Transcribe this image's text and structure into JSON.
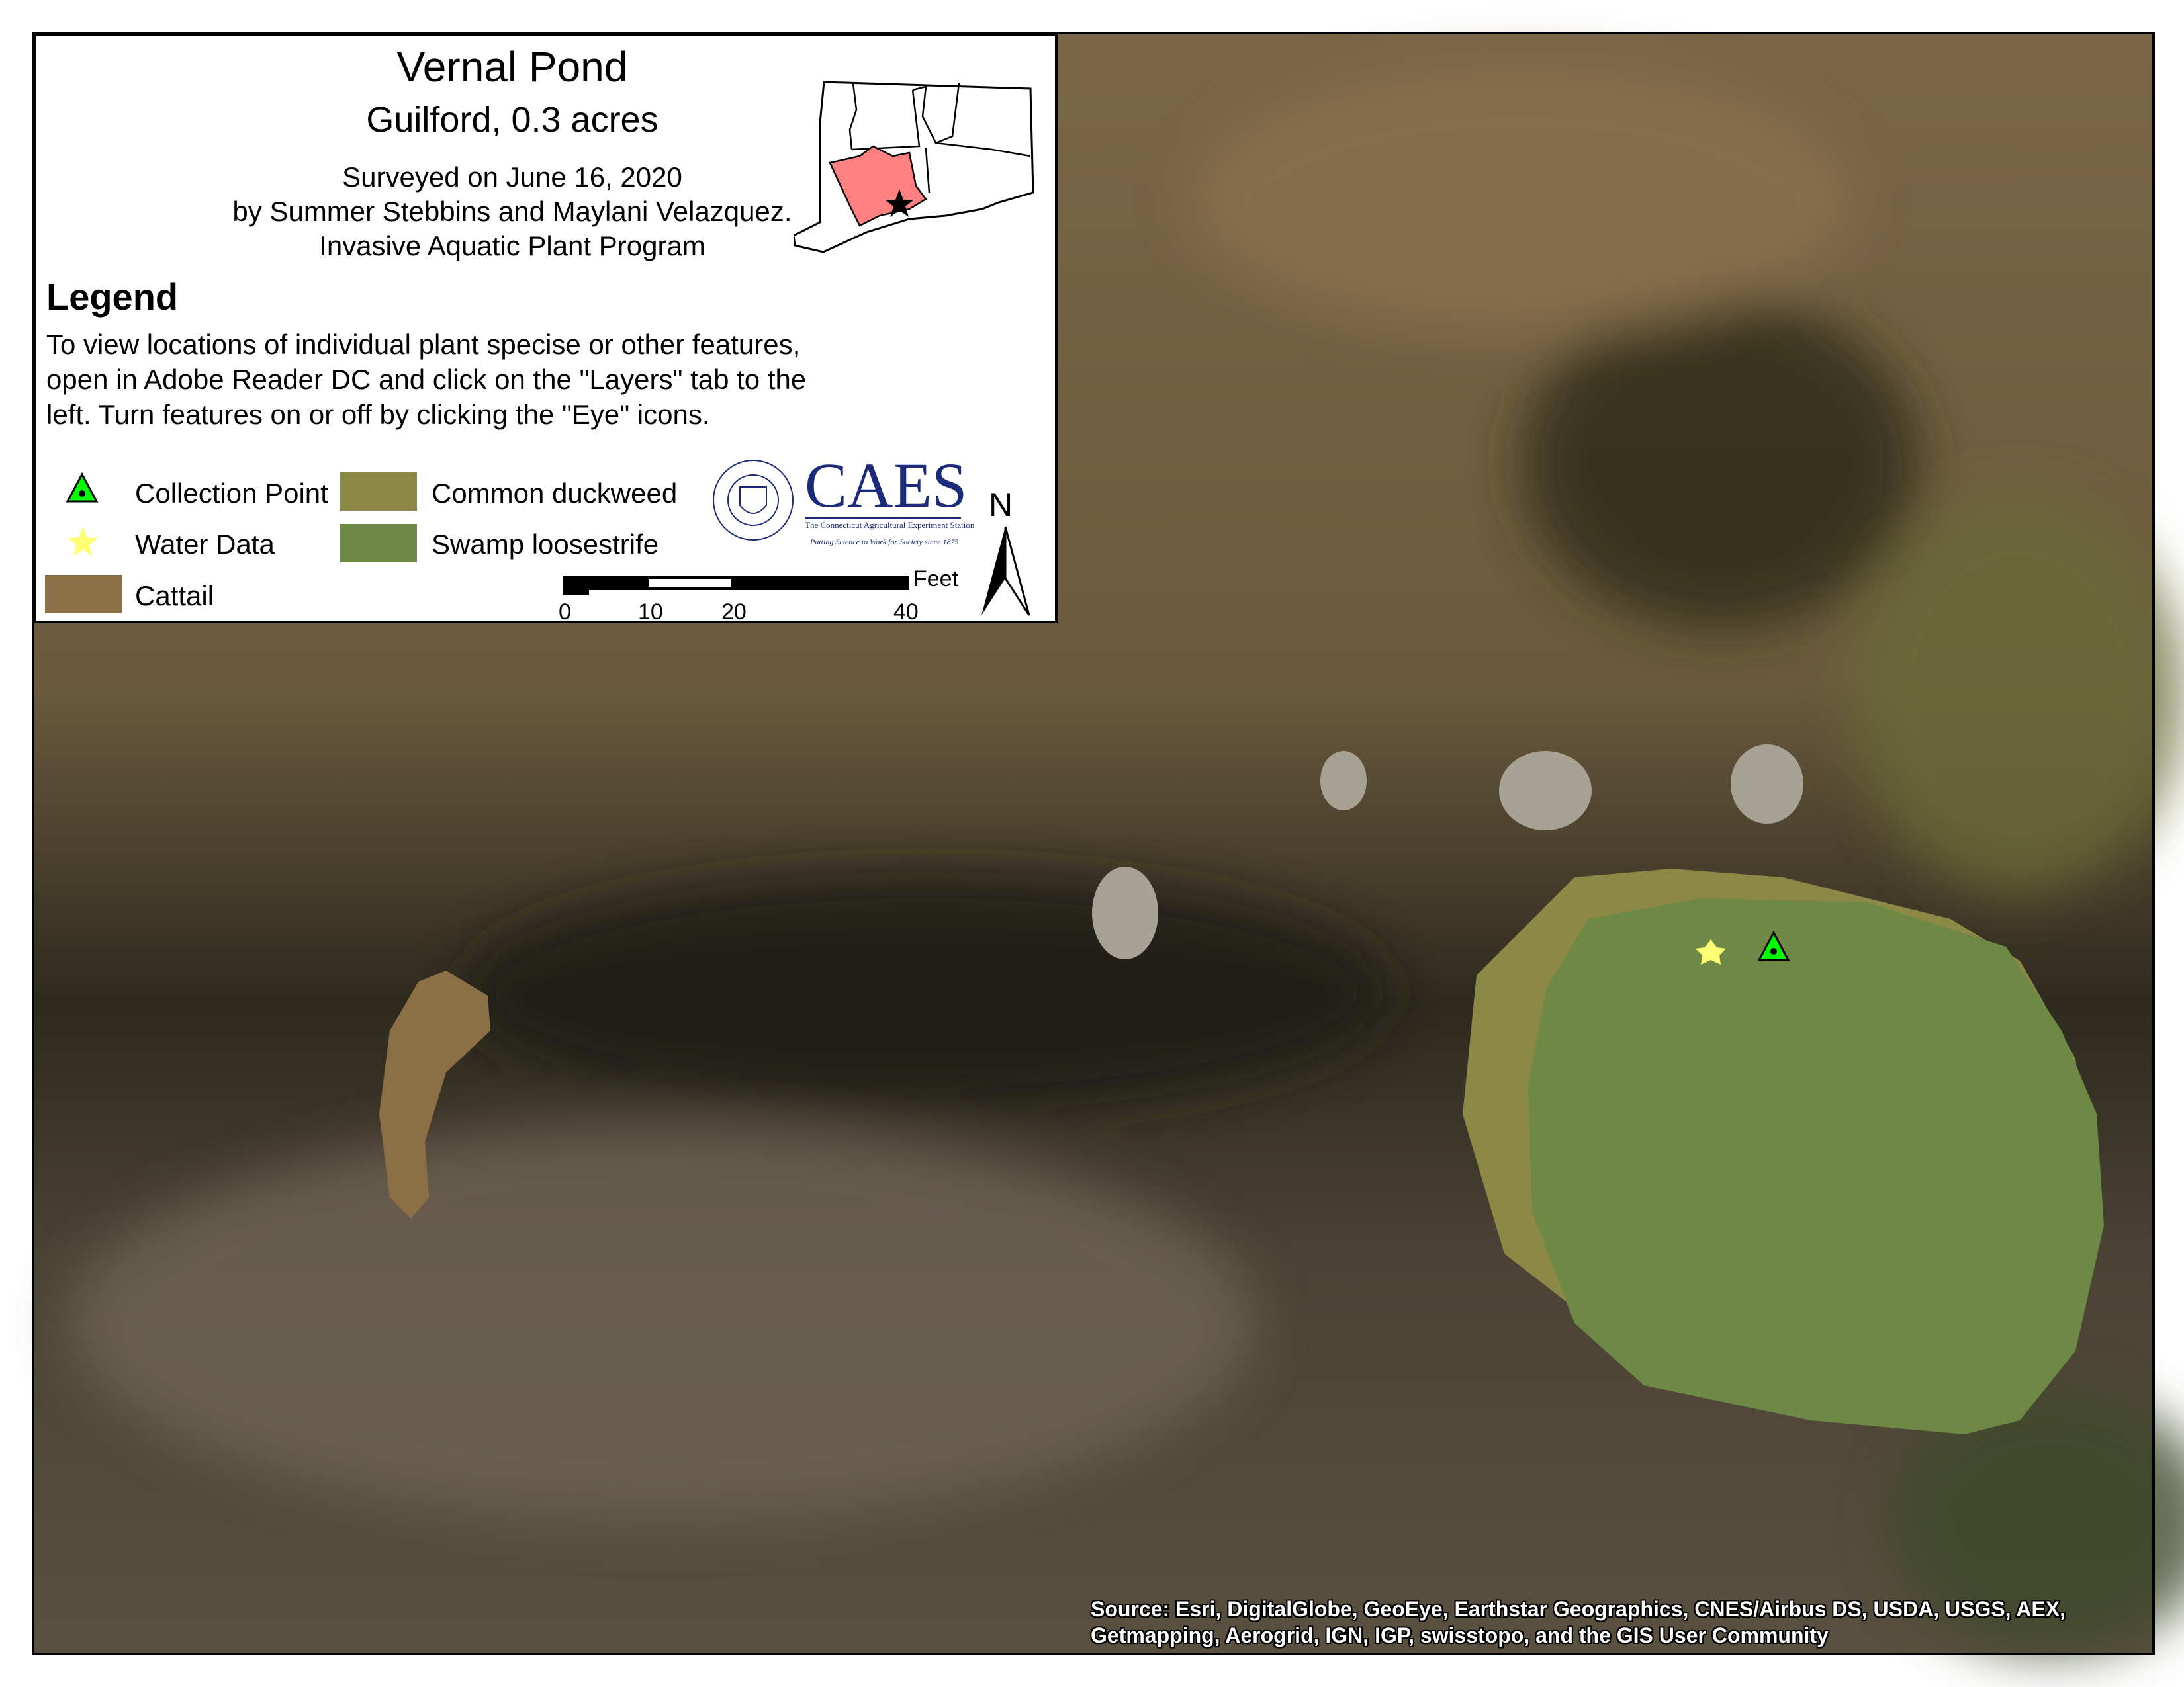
{
  "title": "Vernal Pond",
  "subtitle": "Guilford, 0.3 acres",
  "survey_lines": [
    "Surveyed on June 16, 2020",
    "by Summer Stebbins and Maylani Velazquez.",
    "Invasive Aquatic Plant Program"
  ],
  "legend": {
    "heading": "Legend",
    "description": "To view locations of individual plant specise or other features, open in Adobe Reader DC and click on the \"Layers\" tab to the left. Turn features on or off by clicking the \"Eye\" icons.",
    "items": [
      {
        "label": "Collection Point",
        "symbol": "green-triangle-icon",
        "color": "#00ff00"
      },
      {
        "label": "Water Data",
        "symbol": "yellow-star-icon",
        "color": "#ffff73"
      },
      {
        "label": "Cattail",
        "symbol": "swatch",
        "color": "#8b7045"
      },
      {
        "label": "Common duckweed",
        "symbol": "swatch",
        "color": "#8b8945"
      },
      {
        "label": "Swamp loosestrife",
        "symbol": "swatch",
        "color": "#6e8945"
      }
    ]
  },
  "scale_bar": {
    "unit": "Feet",
    "ticks": [
      "0",
      "10",
      "20",
      "40"
    ]
  },
  "north_arrow": "N",
  "logo": {
    "text": "CAES",
    "line1": "The Connecticut Agricultural Experiment Station",
    "line2": "Putting Science to Work for Society since 1875",
    "seal_text": "THE CONNECTICUT AGRICULTURAL EXPERIMENT STATION"
  },
  "inset_highlight_color": "#ff8080",
  "attribution": [
    "Source: Esri, DigitalGlobe, GeoEye, Earthstar Geographics, CNES/Airbus DS, USDA, USGS, AEX,",
    "Getmapping, Aerogrid, IGN, IGP, swisstopo, and the GIS User Community"
  ]
}
